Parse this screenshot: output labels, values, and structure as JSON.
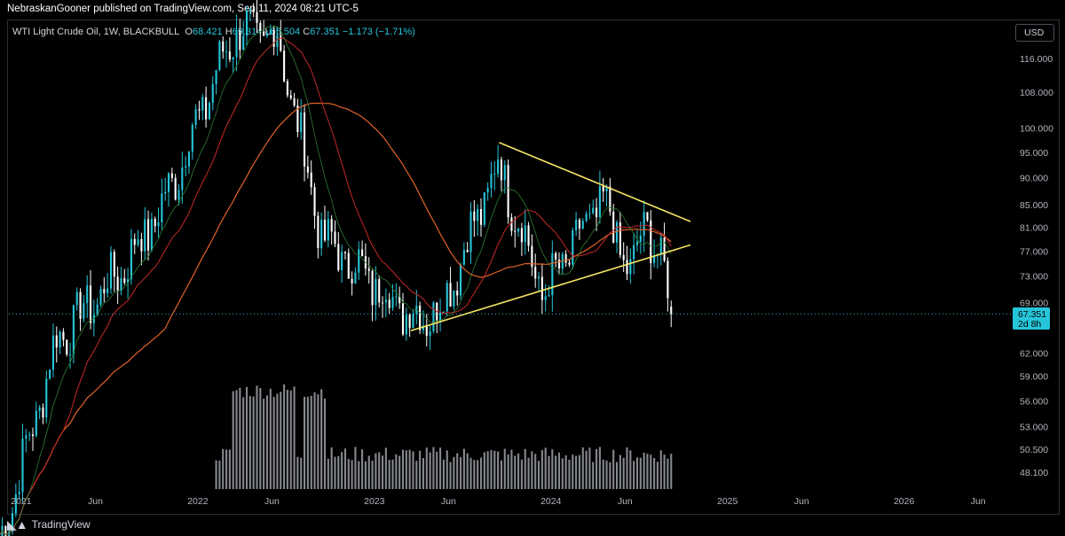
{
  "header": {
    "author": "NebraskanGooner",
    "published_text": "published on TradingView.com, Sep 11, 2024 08:21 UTC-5"
  },
  "legend": {
    "symbol": "WTI Light Crude Oil, 1W, BLACKBULL",
    "open_label": "O",
    "open": "68.421",
    "high_label": "H",
    "high": "69.314",
    "low_label": "L",
    "low": "65.504",
    "close_label": "C",
    "close": "67.351",
    "change": "−1.173 (−1.71%)"
  },
  "currency": "USD",
  "price_tag": {
    "price": "67.351",
    "countdown": "2d 8h"
  },
  "footer": {
    "brand": "TradingView",
    "logo": "tradingview-logo"
  },
  "colors": {
    "up": "#26c6da",
    "down": "#ffffff",
    "ma_long": "#e0632a",
    "ma_short": "#c62828",
    "ma_fast": "#2e7d32",
    "trendline": "#f5e663",
    "price_tag": "#26c6da",
    "background": "#000000"
  },
  "chart_data": {
    "type": "candlestick",
    "symbol": "WTI Light Crude Oil",
    "interval": "1W",
    "y_axis": {
      "scale": "log",
      "ticks": [
        116,
        108,
        100,
        95,
        90,
        85,
        81,
        77,
        73,
        69,
        62,
        59,
        56,
        53,
        50.5,
        48.1
      ],
      "tick_labels": [
        "116.000",
        "108.000",
        "100.000",
        "95.000",
        "90.000",
        "85.000",
        "81.000",
        "77.000",
        "73.000",
        "69.000",
        "62.000",
        "59.000",
        "56.000",
        "53.000",
        "50.500",
        "48.100"
      ]
    },
    "x_axis": {
      "labels": [
        "2021",
        "Jun",
        "2022",
        "Jun",
        "2023",
        "Jun",
        "2024",
        "Jun",
        "2025",
        "Jun",
        "2026",
        "Jun"
      ],
      "label_years": [
        2021.0,
        2021.42,
        2022.0,
        2022.42,
        2023.0,
        2023.42,
        2024.0,
        2024.42,
        2025.0,
        2025.42,
        2026.0,
        2026.42
      ],
      "range": [
        2020.93,
        2026.6
      ]
    },
    "key_prices": [
      {
        "date": "2020-11",
        "price": 41
      },
      {
        "date": "2021-03",
        "price": 64
      },
      {
        "date": "2021-07",
        "price": 73
      },
      {
        "date": "2021-10",
        "price": 84
      },
      {
        "date": "2022-03",
        "price": 123
      },
      {
        "date": "2022-06",
        "price": 121
      },
      {
        "date": "2022-09",
        "price": 79
      },
      {
        "date": "2022-12",
        "price": 73
      },
      {
        "date": "2023-03",
        "price": 67
      },
      {
        "date": "2023-05",
        "price": 68
      },
      {
        "date": "2023-09",
        "price": 93
      },
      {
        "date": "2023-12",
        "price": 70
      },
      {
        "date": "2024-04",
        "price": 86
      },
      {
        "date": "2024-06",
        "price": 73
      },
      {
        "date": "2024-07",
        "price": 83
      },
      {
        "date": "2024-09",
        "price": 67.351
      }
    ],
    "last": {
      "open": 68.421,
      "high": 69.314,
      "low": 65.504,
      "close": 67.351,
      "change": -1.173,
      "change_pct": -1.71
    },
    "trendlines": [
      {
        "name": "",
        "from": {
          "date": "2023-09",
          "price": 97
        },
        "to": {
          "date": "2024-10",
          "price": 82
        }
      },
      {
        "name": "",
        "from": {
          "date": "2023-03",
          "price": 65
        },
        "to": {
          "date": "2024-10",
          "price": 78
        }
      }
    ],
    "moving_averages": [
      "short (red)",
      "fast (green)",
      "long (orange)"
    ],
    "volume_panel": true,
    "grid": false
  }
}
